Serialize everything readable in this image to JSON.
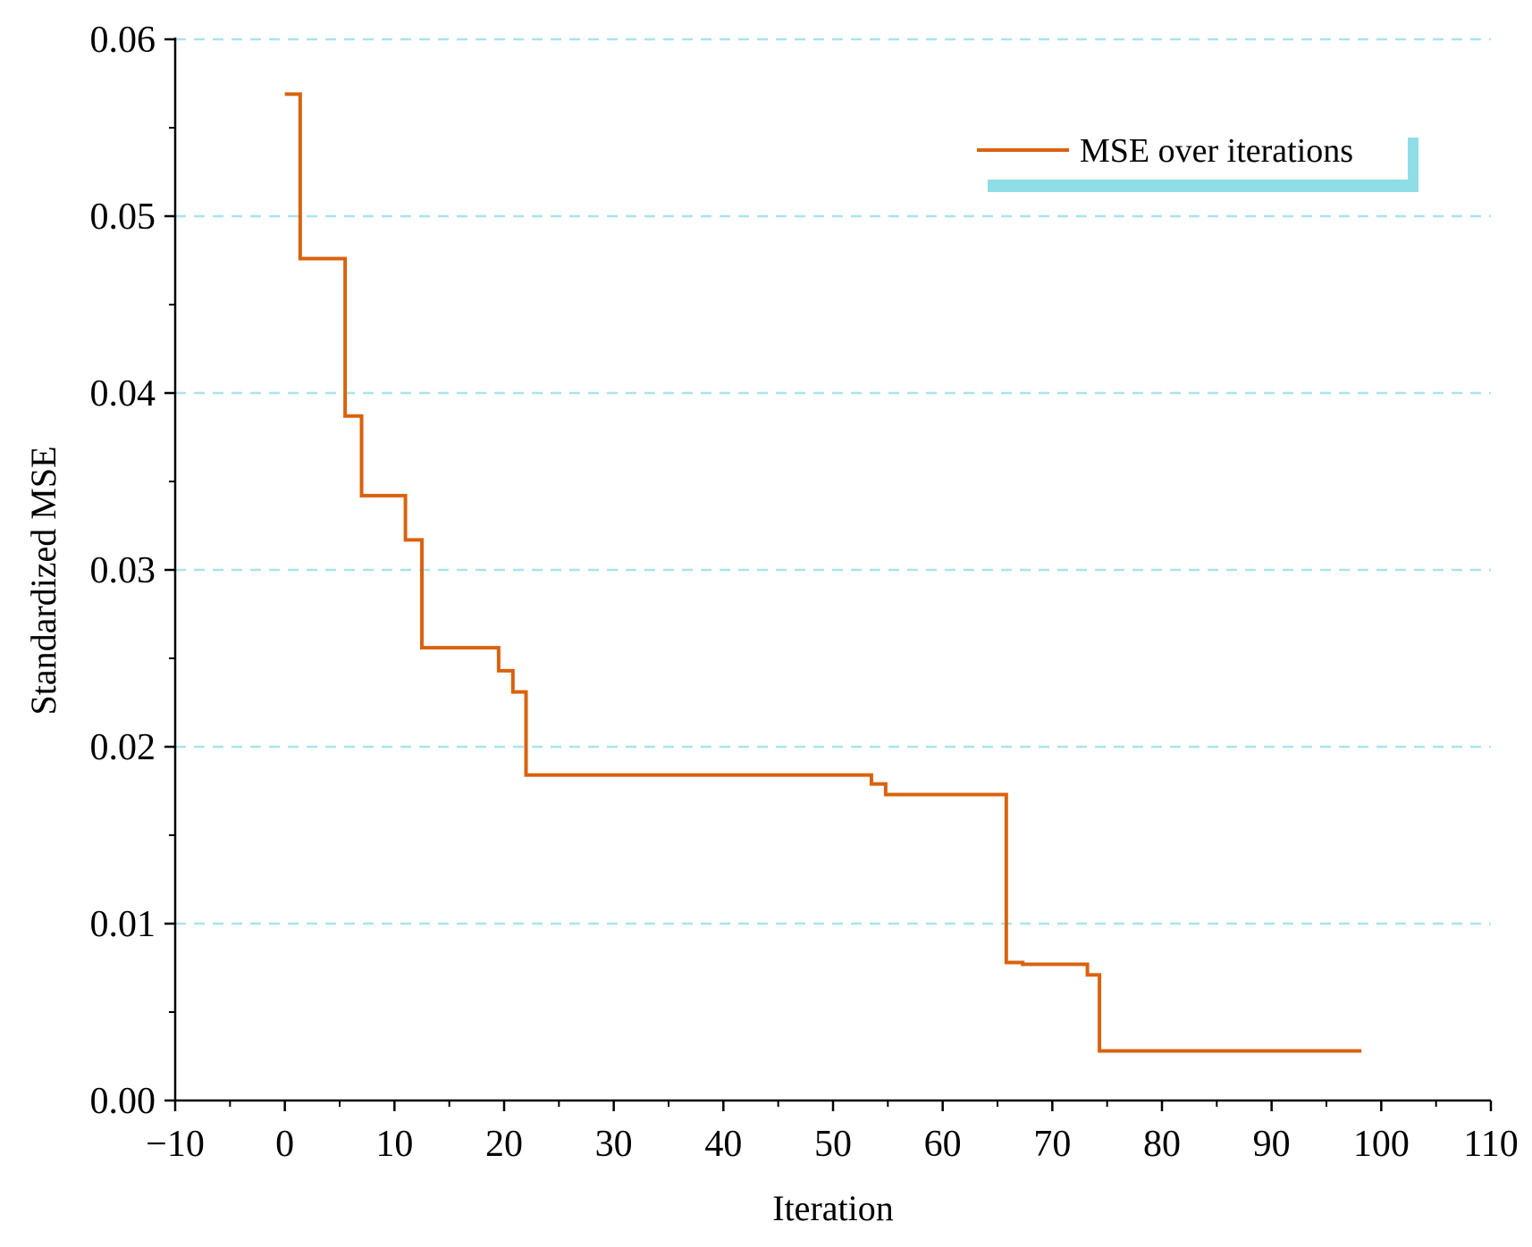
{
  "chart_data": {
    "type": "line",
    "step": true,
    "title": "",
    "xlabel": "Iteration",
    "ylabel": "Standardized MSE",
    "xlim": [
      -10,
      110
    ],
    "ylim": [
      0,
      0.06
    ],
    "xticks": [
      -10,
      0,
      10,
      20,
      30,
      40,
      50,
      60,
      70,
      80,
      90,
      100,
      110
    ],
    "xtick_labels": [
      "−10",
      "0",
      "10",
      "20",
      "30",
      "40",
      "50",
      "60",
      "70",
      "80",
      "90",
      "100",
      "110"
    ],
    "yticks": [
      0.0,
      0.01,
      0.02,
      0.03,
      0.04,
      0.05,
      0.06
    ],
    "ytick_labels": [
      "0.00",
      "0.01",
      "0.02",
      "0.03",
      "0.04",
      "0.05",
      "0.06"
    ],
    "grid": "horizontal dashed",
    "legend_position": "top-right",
    "series": [
      {
        "name": "MSE over iterations",
        "color": "#d9620f",
        "x": [
          0,
          1.4,
          5.5,
          7,
          11,
          12.5,
          19.5,
          20.8,
          22,
          53.5,
          54.8,
          65.8,
          67.3,
          73.2,
          74.3,
          98.2
        ],
        "y": [
          0.0569,
          0.0476,
          0.0387,
          0.0342,
          0.0317,
          0.0256,
          0.0243,
          0.0231,
          0.0184,
          0.0179,
          0.0173,
          0.0078,
          0.0077,
          0.0071,
          0.0028,
          0.0028
        ]
      }
    ]
  },
  "colors": {
    "grid": "#a8e4ec",
    "legend_accent": "#8fdde6",
    "axis": "#000000"
  }
}
